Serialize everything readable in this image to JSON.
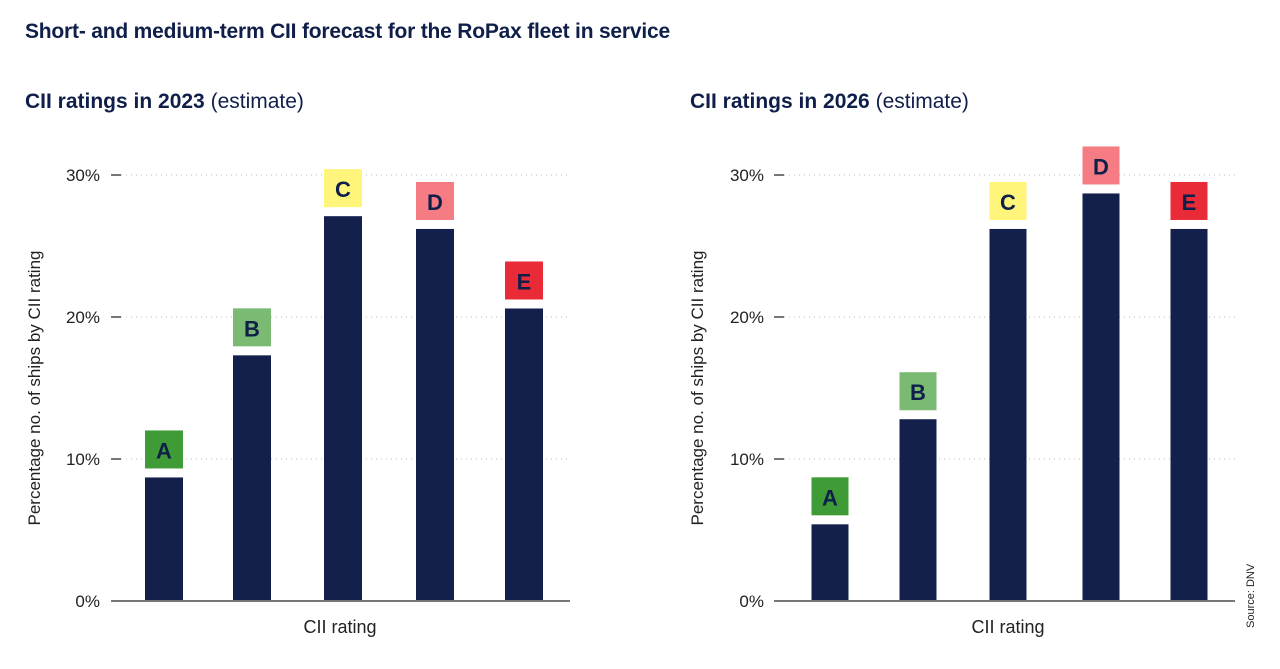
{
  "title": "Short- and medium-term CII forecast for the RoPax fleet in service",
  "source": "Source: DNV",
  "colors": {
    "bar": "#12204b",
    "text": "#0f1f4a",
    "grid": "#bbbbbb",
    "axis": "#777777",
    "rating_A": "#3e9b36",
    "rating_B": "#7aba72",
    "rating_C": "#fff57a",
    "rating_D": "#f47c82",
    "rating_E": "#e92a37"
  },
  "chart_data": [
    {
      "type": "bar",
      "title": "CII ratings in 2023",
      "title_suffix": "(estimate)",
      "xlabel": "CII rating",
      "ylabel": "Percentage no. of ships by CII rating",
      "categories": [
        "A",
        "B",
        "C",
        "D",
        "E"
      ],
      "values": [
        8.7,
        17.3,
        27.1,
        26.2,
        20.6
      ],
      "unit": "%",
      "ylim": [
        0,
        30
      ],
      "yticks": [
        "0%",
        "10%",
        "20%",
        "30%"
      ],
      "ytick_values": [
        0,
        10,
        20,
        30
      ],
      "grid": true,
      "legend": "none (category labels shown as colored boxes above bars)"
    },
    {
      "type": "bar",
      "title": "CII ratings in 2026",
      "title_suffix": "(estimate)",
      "xlabel": "CII rating",
      "ylabel": "Percentage no. of ships by CII rating",
      "categories": [
        "A",
        "B",
        "C",
        "D",
        "E"
      ],
      "values": [
        5.4,
        12.8,
        26.2,
        28.7,
        26.2
      ],
      "unit": "%",
      "ylim": [
        0,
        30
      ],
      "yticks": [
        "0%",
        "10%",
        "20%",
        "30%"
      ],
      "ytick_values": [
        0,
        10,
        20,
        30
      ],
      "grid": true,
      "legend": "none (category labels shown as colored boxes above bars)"
    }
  ]
}
